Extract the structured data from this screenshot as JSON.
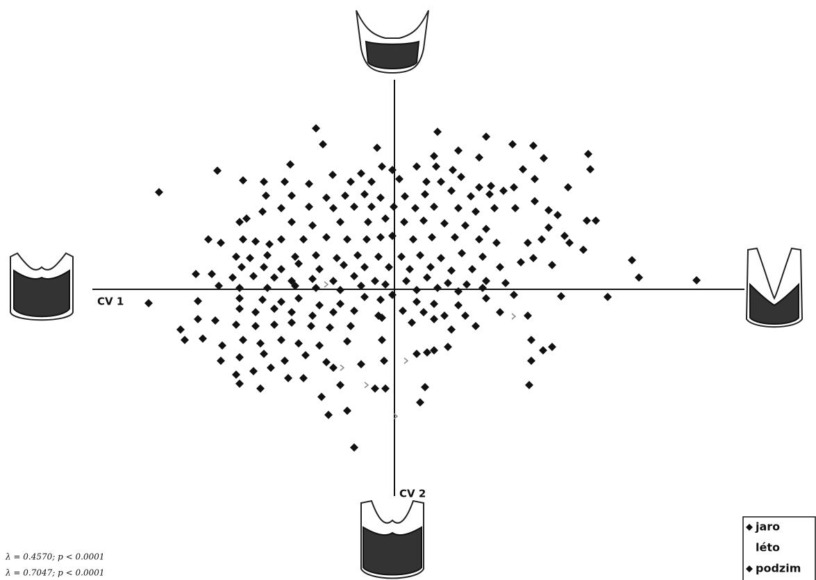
{
  "chart_data": {
    "type": "scatter",
    "x_label": "CV 1",
    "y_label": "CV 2",
    "annotations": [
      "λ   = 0.4570; p < 0.0001",
      "λ   = 0.7047; p < 0.0001"
    ],
    "xlim": [
      -4.35,
      5.04
    ],
    "ylim": [
      -2.98,
      3.02
    ],
    "legend": "bottom-right",
    "series": [
      {
        "name": "jaro",
        "color": "#111111",
        "marker": "diamond",
        "x": [
          -1.13,
          -1.03,
          0.62,
          1.32,
          1.7,
          2.0,
          0.92,
          1.22,
          -0.25,
          0.57,
          2.79,
          2.82,
          -2.55,
          -1.5,
          -0.89,
          -0.48,
          -0.18,
          -0.03,
          0.32,
          0.6,
          0.84,
          0.96,
          1.85,
          2.15,
          2.02,
          2.5,
          -3.39,
          -2.18,
          -1.88,
          -1.58,
          -1.23,
          -0.63,
          -0.33,
          0.07,
          0.46,
          0.67,
          1.22,
          1.39,
          1.57,
          1.72,
          -1.85,
          -1.48,
          -0.98,
          -0.71,
          -0.43,
          -0.2,
          0.15,
          0.44,
          0.82,
          1.1,
          1.37,
          2.02,
          2.77,
          2.9,
          -2.68,
          -2.5,
          -2.23,
          -2.13,
          -1.9,
          -1.63,
          -1.23,
          -0.88,
          -0.58,
          -0.33,
          -0.01,
          0.3,
          0.57,
          0.92,
          1.17,
          1.44,
          1.74,
          2.22,
          2.35,
          -1.48,
          -1.18,
          -0.78,
          -0.38,
          -0.13,
          0.14,
          0.42,
          0.72,
          1.02,
          1.32,
          2.22,
          2.45,
          -2.18,
          -2.0,
          -1.8,
          -1.63,
          -1.31,
          -0.98,
          -0.68,
          -0.4,
          -0.2,
          -0.03,
          0.27,
          0.54,
          0.87,
          1.22,
          1.47,
          1.92,
          2.12,
          2.52,
          2.72,
          -2.28,
          -2.08,
          -1.83,
          -1.43,
          -1.13,
          -0.83,
          -0.53,
          -0.23,
          0.1,
          0.37,
          0.67,
          0.97,
          1.27,
          1.82,
          2.0,
          2.27,
          3.42,
          -2.2,
          -1.88,
          -1.63,
          -1.38,
          -1.08,
          -0.73,
          -0.43
        ],
        "values": [
          2.32,
          2.09,
          2.27,
          2.2,
          2.09,
          2.07,
          2.0,
          1.9,
          2.04,
          1.92,
          1.95,
          1.73,
          1.71,
          1.8,
          1.65,
          1.67,
          1.77,
          1.72,
          1.77,
          1.77,
          1.72,
          1.62,
          1.73,
          1.89,
          1.59,
          1.47,
          1.4,
          1.57,
          1.55,
          1.55,
          1.52,
          1.55,
          1.55,
          1.59,
          1.55,
          1.55,
          1.47,
          1.49,
          1.42,
          1.47,
          1.35,
          1.35,
          1.32,
          1.35,
          1.37,
          1.32,
          1.34,
          1.37,
          1.42,
          1.34,
          1.37,
          1.27,
          0.99,
          0.99,
          0.72,
          0.67,
          0.97,
          1.02,
          1.12,
          1.17,
          1.19,
          1.17,
          1.19,
          1.19,
          1.19,
          1.17,
          1.19,
          1.17,
          1.12,
          1.17,
          1.17,
          1.14,
          1.07,
          0.97,
          0.92,
          0.97,
          0.97,
          1.02,
          0.97,
          0.99,
          0.95,
          0.92,
          0.87,
          0.89,
          0.77,
          0.72,
          0.69,
          0.65,
          0.72,
          0.72,
          0.75,
          0.72,
          0.72,
          0.75,
          0.77,
          0.72,
          0.75,
          0.75,
          0.72,
          0.67,
          0.67,
          0.72,
          0.67,
          0.57,
          0.47,
          0.45,
          0.49,
          0.47,
          0.49,
          0.45,
          0.49,
          0.47,
          0.47,
          0.49,
          0.45,
          0.52,
          0.47,
          0.39,
          0.45,
          0.35,
          0.42,
          0.32,
          0.32,
          0.29,
          0.37,
          0.29,
          0.35,
          0.32
        ]
      },
      {
        "name": "léto",
        "color": "#888888",
        "marker": "tick",
        "x": [
          -0.75,
          -0.4,
          1.72,
          0.17,
          -0.98,
          0.02
        ],
        "values": [
          -1.13,
          -1.38,
          -0.39,
          -1.03,
          0.07,
          -1.83
        ]
      },
      {
        "name": "podzim",
        "color": "#111111",
        "marker": "diamond",
        "x": [
          -0.08,
          0.22,
          0.52,
          0.82,
          1.12,
          1.52,
          3.52,
          4.35,
          -2.86,
          -2.63,
          -2.33,
          -2.03,
          -1.73,
          -1.48,
          -1.18,
          -0.88,
          -0.58,
          -0.28,
          -0.13,
          0.17,
          0.47,
          0.77,
          1.04,
          1.32,
          1.6,
          -2.53,
          -2.23,
          -1.83,
          -1.43,
          -1.13,
          -0.78,
          -0.48,
          -0.03,
          0.32,
          0.62,
          0.92,
          1.27,
          1.72,
          2.4,
          3.07,
          -3.54,
          -2.83,
          -2.23,
          -1.9,
          -1.63,
          -1.38,
          -1.08,
          -0.78,
          -0.43,
          -0.2,
          0.32,
          0.57,
          0.92,
          1.32,
          -2.23,
          -2.0,
          -1.73,
          -1.48,
          -1.18,
          -0.88,
          -0.58,
          -0.23,
          0.12,
          0.42,
          0.72,
          1.02,
          1.52,
          1.92,
          -3.08,
          -2.83,
          -2.58,
          -2.28,
          -2.0,
          -1.73,
          -1.48,
          -1.2,
          -0.93,
          -0.63,
          -0.18,
          0.25,
          0.57,
          0.82,
          1.17,
          -3.02,
          -2.76,
          -2.48,
          -2.18,
          -1.93,
          -1.63,
          -1.38,
          -1.08,
          -0.68,
          -0.18,
          0.32,
          0.47,
          0.57,
          0.77,
          1.97,
          2.14,
          1.97,
          2.27,
          -2.5,
          -2.23,
          -1.88,
          -1.58,
          -1.28,
          -0.98,
          -0.48,
          -0.15,
          -2.28,
          -2.03,
          -1.78,
          -1.53,
          -1.31,
          -0.88,
          -0.78,
          -2.23,
          -1.93,
          -1.05,
          -0.28,
          -0.13,
          0.44,
          0.37,
          -0.95,
          -0.68,
          -0.58,
          1.94
        ],
        "values": [
          0.32,
          0.29,
          0.32,
          0.27,
          0.29,
          0.32,
          0.17,
          0.13,
          0.22,
          0.22,
          0.17,
          0.19,
          0.17,
          0.12,
          0.15,
          0.12,
          0.19,
          0.12,
          0.07,
          0.12,
          0.17,
          0.09,
          0.07,
          0.12,
          0.09,
          0.05,
          0.02,
          0.02,
          0.05,
          0.02,
          -0.01,
          0.05,
          -0.08,
          -0.01,
          0.02,
          -0.03,
          0.02,
          -0.08,
          -0.1,
          -0.11,
          -0.2,
          -0.17,
          -0.13,
          -0.15,
          -0.18,
          -0.13,
          -0.23,
          -0.21,
          -0.11,
          -0.15,
          -0.18,
          -0.21,
          -0.23,
          -0.13,
          -0.28,
          -0.33,
          -0.28,
          -0.33,
          -0.38,
          -0.33,
          -0.31,
          -0.38,
          -0.31,
          -0.33,
          -0.38,
          -0.38,
          -0.33,
          -0.38,
          -0.58,
          -0.43,
          -0.45,
          -0.51,
          -0.53,
          -0.51,
          -0.48,
          -0.53,
          -0.55,
          -0.53,
          -0.41,
          -0.48,
          -0.43,
          -0.58,
          -0.53,
          -0.73,
          -0.71,
          -0.81,
          -0.73,
          -0.78,
          -0.73,
          -0.78,
          -0.81,
          -0.75,
          -0.73,
          -0.93,
          -0.91,
          -0.88,
          -0.83,
          -0.73,
          -0.88,
          -1.03,
          -0.83,
          -1.03,
          -0.98,
          -0.93,
          -1.03,
          -0.95,
          -1.05,
          -1.08,
          -1.03,
          -1.23,
          -1.18,
          -1.13,
          -1.28,
          -1.28,
          -1.13,
          -1.38,
          -1.36,
          -1.43,
          -1.55,
          -1.43,
          -1.43,
          -1.41,
          -1.63,
          -1.81,
          -1.75,
          -2.28,
          -1.38
        ]
      }
    ]
  }
}
